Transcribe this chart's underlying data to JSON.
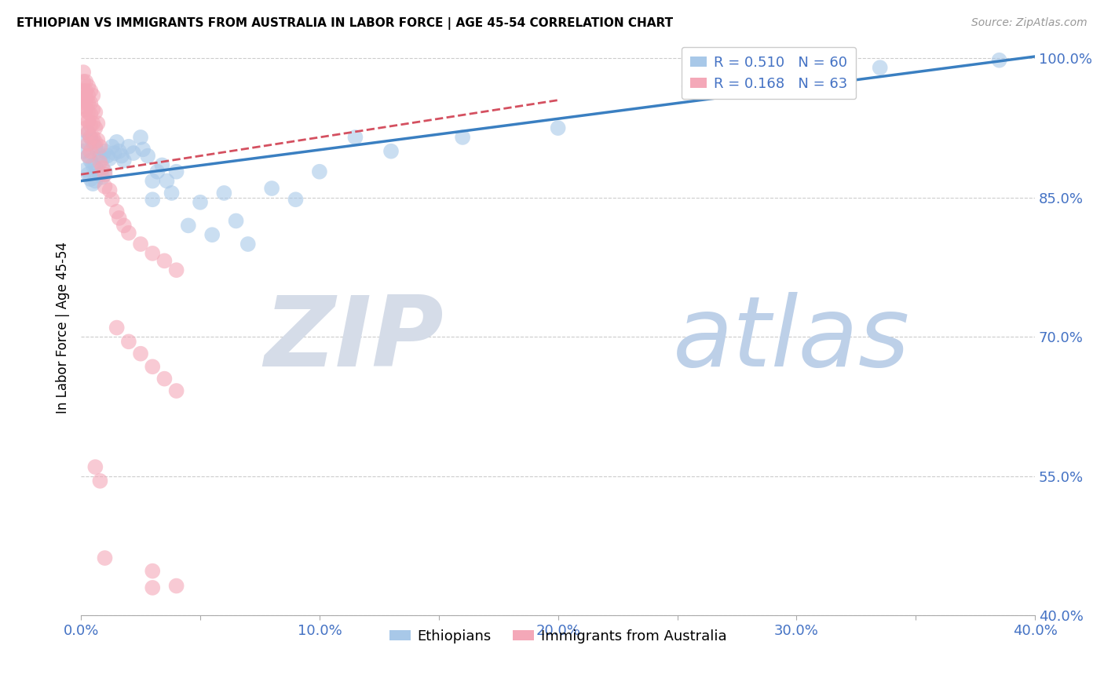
{
  "title": "ETHIOPIAN VS IMMIGRANTS FROM AUSTRALIA IN LABOR FORCE | AGE 45-54 CORRELATION CHART",
  "source": "Source: ZipAtlas.com",
  "ylabel": "In Labor Force | Age 45-54",
  "xmin": 0.0,
  "xmax": 0.4,
  "ymin": 0.4,
  "ymax": 1.02,
  "yticks": [
    0.4,
    0.55,
    0.7,
    0.85,
    1.0
  ],
  "ytick_labels": [
    "40.0%",
    "55.0%",
    "70.0%",
    "85.0%",
    "100.0%"
  ],
  "xticks": [
    0.0,
    0.05,
    0.1,
    0.15,
    0.2,
    0.25,
    0.3,
    0.35,
    0.4
  ],
  "xtick_labels": [
    "0.0%",
    "",
    "10.0%",
    "",
    "20.0%",
    "",
    "30.0%",
    "",
    "40.0%"
  ],
  "blue_color": "#a8c8e8",
  "pink_color": "#f4a8b8",
  "blue_line_color": "#3a7fc1",
  "pink_line_color": "#d45060",
  "watermark_zip": "ZIP",
  "watermark_atlas": "atlas",
  "watermark_color_zip": "#d0d8e8",
  "watermark_color_atlas": "#b8cce0",
  "axis_color": "#4472c4",
  "blue_scatter": [
    [
      0.001,
      0.9
    ],
    [
      0.002,
      0.91
    ],
    [
      0.002,
      0.88
    ],
    [
      0.003,
      0.92
    ],
    [
      0.003,
      0.895
    ],
    [
      0.003,
      0.875
    ],
    [
      0.004,
      0.915
    ],
    [
      0.004,
      0.89
    ],
    [
      0.004,
      0.87
    ],
    [
      0.005,
      0.91
    ],
    [
      0.005,
      0.885
    ],
    [
      0.005,
      0.865
    ],
    [
      0.006,
      0.905
    ],
    [
      0.006,
      0.885
    ],
    [
      0.006,
      0.868
    ],
    [
      0.007,
      0.9
    ],
    [
      0.007,
      0.88
    ],
    [
      0.008,
      0.895
    ],
    [
      0.008,
      0.875
    ],
    [
      0.009,
      0.892
    ],
    [
      0.009,
      0.872
    ],
    [
      0.01,
      0.9
    ],
    [
      0.01,
      0.878
    ],
    [
      0.011,
      0.895
    ],
    [
      0.012,
      0.892
    ],
    [
      0.013,
      0.905
    ],
    [
      0.014,
      0.898
    ],
    [
      0.015,
      0.91
    ],
    [
      0.016,
      0.9
    ],
    [
      0.017,
      0.895
    ],
    [
      0.018,
      0.89
    ],
    [
      0.02,
      0.905
    ],
    [
      0.022,
      0.898
    ],
    [
      0.025,
      0.915
    ],
    [
      0.026,
      0.902
    ],
    [
      0.028,
      0.895
    ],
    [
      0.03,
      0.868
    ],
    [
      0.03,
      0.848
    ],
    [
      0.032,
      0.878
    ],
    [
      0.034,
      0.885
    ],
    [
      0.036,
      0.868
    ],
    [
      0.038,
      0.855
    ],
    [
      0.04,
      0.878
    ],
    [
      0.045,
      0.82
    ],
    [
      0.05,
      0.845
    ],
    [
      0.055,
      0.81
    ],
    [
      0.06,
      0.855
    ],
    [
      0.065,
      0.825
    ],
    [
      0.07,
      0.8
    ],
    [
      0.08,
      0.86
    ],
    [
      0.09,
      0.848
    ],
    [
      0.1,
      0.878
    ],
    [
      0.115,
      0.915
    ],
    [
      0.13,
      0.9
    ],
    [
      0.16,
      0.915
    ],
    [
      0.2,
      0.925
    ],
    [
      0.255,
      0.97
    ],
    [
      0.295,
      0.985
    ],
    [
      0.335,
      0.99
    ],
    [
      0.385,
      0.998
    ]
  ],
  "pink_scatter": [
    [
      0.001,
      0.985
    ],
    [
      0.001,
      0.975
    ],
    [
      0.001,
      0.965
    ],
    [
      0.001,
      0.96
    ],
    [
      0.001,
      0.955
    ],
    [
      0.001,
      0.948
    ],
    [
      0.002,
      0.975
    ],
    [
      0.002,
      0.965
    ],
    [
      0.002,
      0.958
    ],
    [
      0.002,
      0.952
    ],
    [
      0.002,
      0.945
    ],
    [
      0.002,
      0.935
    ],
    [
      0.002,
      0.925
    ],
    [
      0.003,
      0.97
    ],
    [
      0.003,
      0.96
    ],
    [
      0.003,
      0.952
    ],
    [
      0.003,
      0.942
    ],
    [
      0.003,
      0.932
    ],
    [
      0.003,
      0.92
    ],
    [
      0.003,
      0.908
    ],
    [
      0.003,
      0.895
    ],
    [
      0.004,
      0.965
    ],
    [
      0.004,
      0.952
    ],
    [
      0.004,
      0.94
    ],
    [
      0.004,
      0.928
    ],
    [
      0.004,
      0.915
    ],
    [
      0.004,
      0.9
    ],
    [
      0.005,
      0.96
    ],
    [
      0.005,
      0.945
    ],
    [
      0.005,
      0.93
    ],
    [
      0.005,
      0.915
    ],
    [
      0.006,
      0.942
    ],
    [
      0.006,
      0.925
    ],
    [
      0.006,
      0.91
    ],
    [
      0.007,
      0.93
    ],
    [
      0.007,
      0.912
    ],
    [
      0.008,
      0.905
    ],
    [
      0.008,
      0.888
    ],
    [
      0.009,
      0.882
    ],
    [
      0.01,
      0.875
    ],
    [
      0.01,
      0.862
    ],
    [
      0.012,
      0.858
    ],
    [
      0.013,
      0.848
    ],
    [
      0.015,
      0.835
    ],
    [
      0.016,
      0.828
    ],
    [
      0.018,
      0.82
    ],
    [
      0.02,
      0.812
    ],
    [
      0.025,
      0.8
    ],
    [
      0.03,
      0.79
    ],
    [
      0.035,
      0.782
    ],
    [
      0.04,
      0.772
    ],
    [
      0.015,
      0.71
    ],
    [
      0.02,
      0.695
    ],
    [
      0.025,
      0.682
    ],
    [
      0.03,
      0.668
    ],
    [
      0.035,
      0.655
    ],
    [
      0.04,
      0.642
    ],
    [
      0.006,
      0.56
    ],
    [
      0.008,
      0.545
    ],
    [
      0.01,
      0.462
    ],
    [
      0.03,
      0.448
    ],
    [
      0.04,
      0.432
    ],
    [
      0.03,
      0.43
    ]
  ]
}
